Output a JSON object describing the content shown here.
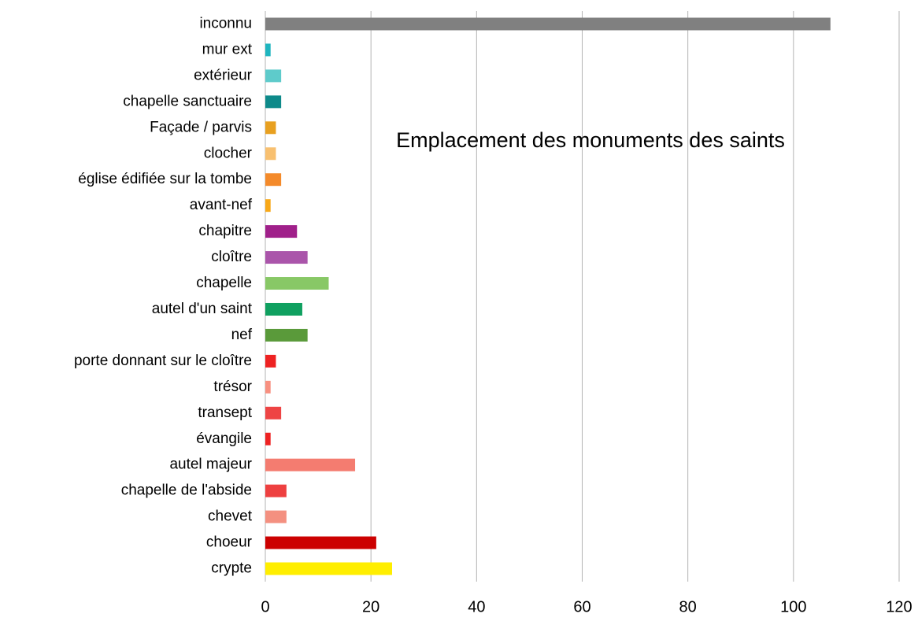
{
  "chart_data": {
    "type": "bar",
    "orientation": "horizontal",
    "title": "Emplacement des monuments des saints",
    "categories": [
      "inconnu",
      "mur ext",
      "extérieur",
      "chapelle sanctuaire",
      "Façade / parvis",
      "clocher",
      "église édifiée sur la tombe",
      "avant-nef",
      "chapitre",
      "cloître",
      "chapelle",
      "autel d'un saint",
      "nef",
      "porte donnant sur le cloître",
      "trésor",
      "transept",
      "évangile",
      "autel majeur",
      "chapelle de l'abside",
      "chevet",
      "choeur",
      "crypte"
    ],
    "values": [
      107,
      1,
      3,
      3,
      2,
      2,
      3,
      1,
      6,
      8,
      12,
      7,
      8,
      2,
      1,
      3,
      1,
      17,
      4,
      4,
      21,
      24
    ],
    "colors": [
      "#808080",
      "#1fb5bf",
      "#5ecbcb",
      "#0e8a8a",
      "#e8a020",
      "#f8c070",
      "#f48a2a",
      "#f8a818",
      "#a0208a",
      "#aa55aa",
      "#88c866",
      "#10a060",
      "#5a9a3a",
      "#ee2222",
      "#f89080",
      "#ee4444",
      "#ee2222",
      "#f47c70",
      "#ee4040",
      "#f49080",
      "#cc0000",
      "#ffee00"
    ],
    "xlim": [
      0,
      120
    ],
    "xticks": [
      0,
      20,
      40,
      60,
      80,
      100,
      120
    ],
    "grid": true
  }
}
